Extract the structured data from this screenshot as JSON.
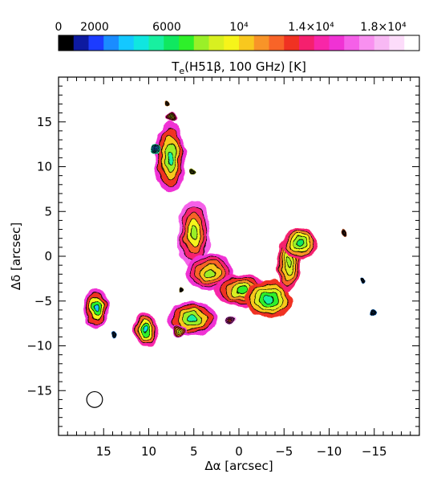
{
  "chart_data": {
    "type": "heatmap",
    "title": "T_e(H51β, 100 GHz) [K]",
    "title_parts": {
      "main": "T",
      "sub": "e",
      "rest": "(H51β, 100 GHz) [K]"
    },
    "xlabel": "Δα [arcsec]",
    "ylabel": "Δδ [arcsec]",
    "xlim": [
      20,
      -20
    ],
    "ylim": [
      -20,
      20
    ],
    "x_ticks": [
      {
        "value": 15,
        "label": "15"
      },
      {
        "value": 10,
        "label": "10"
      },
      {
        "value": 5,
        "label": "5"
      },
      {
        "value": 0,
        "label": "0"
      },
      {
        "value": -5,
        "label": "−5"
      },
      {
        "value": -10,
        "label": "−10"
      },
      {
        "value": -15,
        "label": "−15"
      }
    ],
    "y_ticks": [
      {
        "value": 15,
        "label": "15"
      },
      {
        "value": 10,
        "label": "10"
      },
      {
        "value": 5,
        "label": "5"
      },
      {
        "value": 0,
        "label": "0"
      },
      {
        "value": -5,
        "label": "−5"
      },
      {
        "value": -10,
        "label": "−10"
      },
      {
        "value": -15,
        "label": "−15"
      }
    ],
    "colorbar": {
      "range": [
        0,
        20000
      ],
      "ticks": [
        {
          "value": 0,
          "label": "0"
        },
        {
          "value": 2000,
          "label": "2000"
        },
        {
          "value": 6000,
          "label": "6000"
        },
        {
          "value": 10000,
          "label": "10⁴"
        },
        {
          "value": 14000,
          "label": "1.4×10⁴"
        },
        {
          "value": 18000,
          "label": "1.8×10⁴"
        }
      ],
      "colors": [
        "#000000",
        "#0d1aa0",
        "#1c3cff",
        "#1a8cff",
        "#14c8ff",
        "#10e6e0",
        "#18f0a0",
        "#10e860",
        "#2ef02a",
        "#9af028",
        "#d8f020",
        "#f6f41a",
        "#f8c81e",
        "#f89428",
        "#f86428",
        "#f03222",
        "#f5206e",
        "#f826a8",
        "#f032d4",
        "#f560e8",
        "#f890f0",
        "#f8b8f4",
        "#fcdcfa",
        "#ffffff"
      ]
    },
    "beam": {
      "x": 16,
      "y": -16,
      "radius_arcsec": 0.7
    },
    "regions": [
      {
        "name": "north-knot",
        "x": 7.6,
        "y": 11.0,
        "rx": 1.7,
        "ry": 4.0,
        "t_center": 5600,
        "t_edge": 15500
      },
      {
        "name": "north-tip",
        "x": 8.0,
        "y": 17.2,
        "rx": 0.35,
        "ry": 0.35,
        "t_center": 11000,
        "t_edge": 11000
      },
      {
        "name": "north-small",
        "x": 7.5,
        "y": 15.5,
        "rx": 0.55,
        "ry": 0.45,
        "t_center": 7500,
        "t_edge": 14500
      },
      {
        "name": "west-blob",
        "x": 9.2,
        "y": 12.0,
        "rx": 0.55,
        "ry": 0.5,
        "t_center": 2500,
        "t_edge": 5000
      },
      {
        "name": "north-speck",
        "x": 5.0,
        "y": 9.5,
        "rx": 0.35,
        "ry": 0.35,
        "t_center": 8500,
        "t_edge": 8500
      },
      {
        "name": "arc-upper",
        "x": 5.0,
        "y": 2.5,
        "rx": 1.8,
        "ry": 3.8,
        "t_center": 7800,
        "t_edge": 16000
      },
      {
        "name": "arc-mid",
        "x": 3.2,
        "y": -1.8,
        "rx": 2.6,
        "ry": 2.1,
        "t_center": 8200,
        "t_edge": 15500
      },
      {
        "name": "arc-bottom",
        "x": -0.3,
        "y": -3.8,
        "rx": 3.0,
        "ry": 1.8,
        "t_center": 7200,
        "t_edge": 14500
      },
      {
        "name": "arc-knee",
        "x": -3.3,
        "y": -4.8,
        "rx": 2.6,
        "ry": 2.1,
        "t_center": 5400,
        "t_edge": 12500
      },
      {
        "name": "east-arm",
        "x": -5.5,
        "y": -0.8,
        "rx": 1.3,
        "ry": 3.0,
        "t_center": 7600,
        "t_edge": 13500
      },
      {
        "name": "east-knot",
        "x": -6.8,
        "y": 1.4,
        "rx": 2.0,
        "ry": 1.7,
        "t_center": 5900,
        "t_edge": 13500
      },
      {
        "name": "south-west-blob",
        "x": 5.2,
        "y": -7.0,
        "rx": 2.8,
        "ry": 1.9,
        "t_center": 5500,
        "t_edge": 15500
      },
      {
        "name": "south-west-tail",
        "x": 6.6,
        "y": -8.3,
        "rx": 0.8,
        "ry": 0.7,
        "t_center": 8000,
        "t_edge": 15000
      },
      {
        "name": "south-tab",
        "x": 1.0,
        "y": -7.1,
        "rx": 0.6,
        "ry": 0.5,
        "t_center": 12000,
        "t_edge": 17000
      },
      {
        "name": "mid-speck",
        "x": 6.5,
        "y": -3.6,
        "rx": 0.25,
        "ry": 0.25,
        "t_center": 10500,
        "t_edge": 10500
      },
      {
        "name": "far-left",
        "x": 15.8,
        "y": -5.8,
        "rx": 1.4,
        "ry": 2.2,
        "t_center": 3800,
        "t_edge": 15500
      },
      {
        "name": "far-left-speck",
        "x": 13.8,
        "y": -8.7,
        "rx": 0.35,
        "ry": 0.35,
        "t_center": 3000,
        "t_edge": 3000
      },
      {
        "name": "mid-left",
        "x": 10.3,
        "y": -8.2,
        "rx": 1.4,
        "ry": 1.9,
        "t_center": 4600,
        "t_edge": 14500
      },
      {
        "name": "east-dot",
        "x": -11.6,
        "y": 2.6,
        "rx": 0.35,
        "ry": 0.35,
        "t_center": 12000,
        "t_edge": 12000
      },
      {
        "name": "east-dot-2",
        "x": -13.8,
        "y": -2.6,
        "rx": 0.3,
        "ry": 0.3,
        "t_center": 3000,
        "t_edge": 3000
      },
      {
        "name": "east-dot-3",
        "x": -15.0,
        "y": -6.3,
        "rx": 0.35,
        "ry": 0.35,
        "t_center": 3000,
        "t_edge": 3000
      }
    ]
  }
}
